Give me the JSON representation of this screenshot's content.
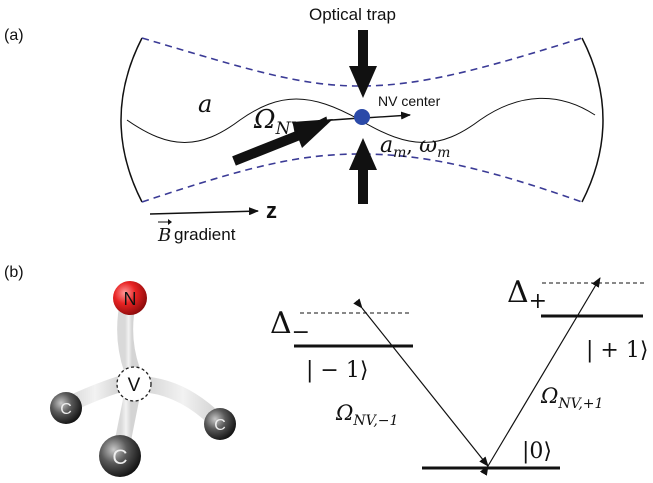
{
  "panel_a": {
    "label": "(a)",
    "optical_trap": "Optical trap",
    "cavity_mode": "a",
    "nv_center": "NV center",
    "omega_nv_main": "Ω",
    "omega_nv_sub": "NV",
    "mech_mode_a": "a",
    "mech_mode_a_sub": "m",
    "mech_mode_sep": ", ",
    "mech_mode_w": "ω",
    "mech_mode_w_sub": "m",
    "axis_z": "z",
    "b_vec": "B",
    "b_gradient": "gradient"
  },
  "panel_b": {
    "label": "(b)",
    "atom_n": "N",
    "atom_v": "V",
    "atom_c1": "C",
    "atom_c2": "C",
    "atom_c3": "C",
    "delta_minus_main": "Δ",
    "delta_minus_sub": "−",
    "delta_plus_main": "Δ",
    "delta_plus_sub": "+",
    "ket_m1": "| − 1⟩",
    "ket_p1": "| + 1⟩",
    "ket_0": "|0⟩",
    "omega_m1_main": "Ω",
    "omega_m1_sub": "NV,−1",
    "omega_p1_main": "Ω",
    "omega_p1_sub": "NV,+1"
  },
  "colors": {
    "dashed_beam": "#3b3b96",
    "nv_dot": "#2b4aa8",
    "nitrogen": "#e02020",
    "carbon": "#555555"
  }
}
